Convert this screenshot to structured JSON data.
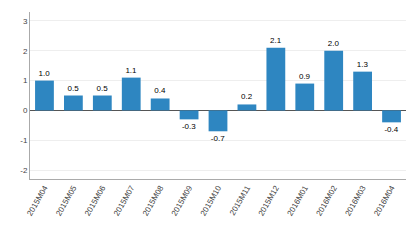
{
  "chart_data": {
    "type": "bar",
    "categories": [
      "2015M04",
      "2015M05",
      "2015M06",
      "2015M07",
      "2015M08",
      "2015M09",
      "2015M10",
      "2015M11",
      "2015M12",
      "2016M01",
      "2016M02",
      "2016M03",
      "2016M04"
    ],
    "values": [
      1.0,
      0.5,
      0.5,
      1.1,
      0.4,
      -0.3,
      -0.7,
      0.2,
      2.1,
      0.9,
      2.0,
      1.3,
      -0.4
    ],
    "value_labels": [
      "1.0",
      "0.5",
      "0.5",
      "1.1",
      "0.4",
      "-0.3",
      "-0.7",
      "0.2",
      "2.1",
      "0.9",
      "2.0",
      "1.3",
      "-0.4"
    ],
    "color": "#2e86c1",
    "ylim": [
      -2.3,
      3.3
    ],
    "yticks": [
      -2,
      -1,
      0,
      1,
      2,
      3
    ],
    "grid": true,
    "data_labels": true
  }
}
